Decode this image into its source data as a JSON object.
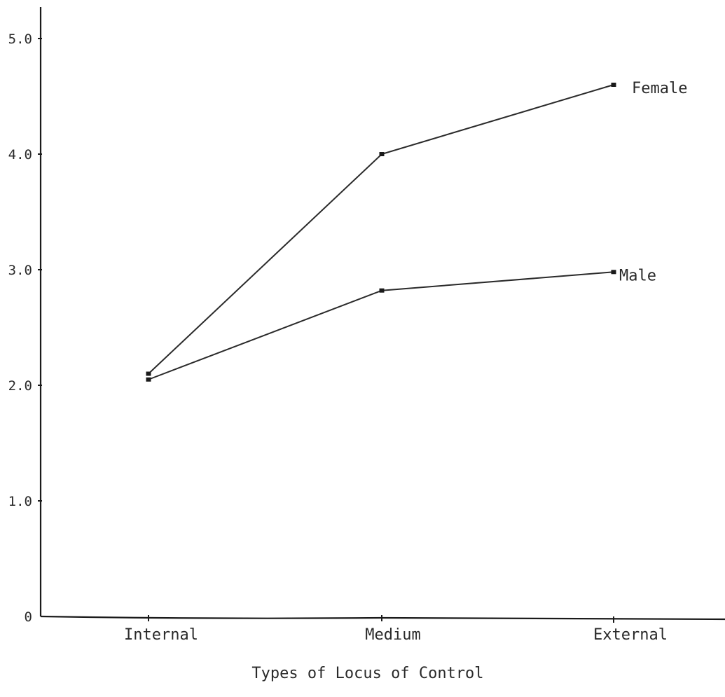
{
  "chart_data": {
    "type": "line",
    "title": "",
    "xlabel": "Types of Locus of Control",
    "ylabel": "",
    "categories": [
      "Internal",
      "Medium",
      "External"
    ],
    "y_ticks": [
      {
        "value": 0,
        "label": "0"
      },
      {
        "value": 1,
        "label": "1.0"
      },
      {
        "value": 2,
        "label": "2.0"
      },
      {
        "value": 3,
        "label": "3.0"
      },
      {
        "value": 4,
        "label": "4.0"
      },
      {
        "value": 5,
        "label": "5.0"
      }
    ],
    "ylim": [
      0,
      5.3
    ],
    "grid": false,
    "legend": "none (series labelled at line ends)",
    "series": [
      {
        "name": "Female",
        "values": [
          2.1,
          4.0,
          4.6
        ]
      },
      {
        "name": "Male",
        "values": [
          2.05,
          2.82,
          2.98
        ]
      }
    ]
  }
}
